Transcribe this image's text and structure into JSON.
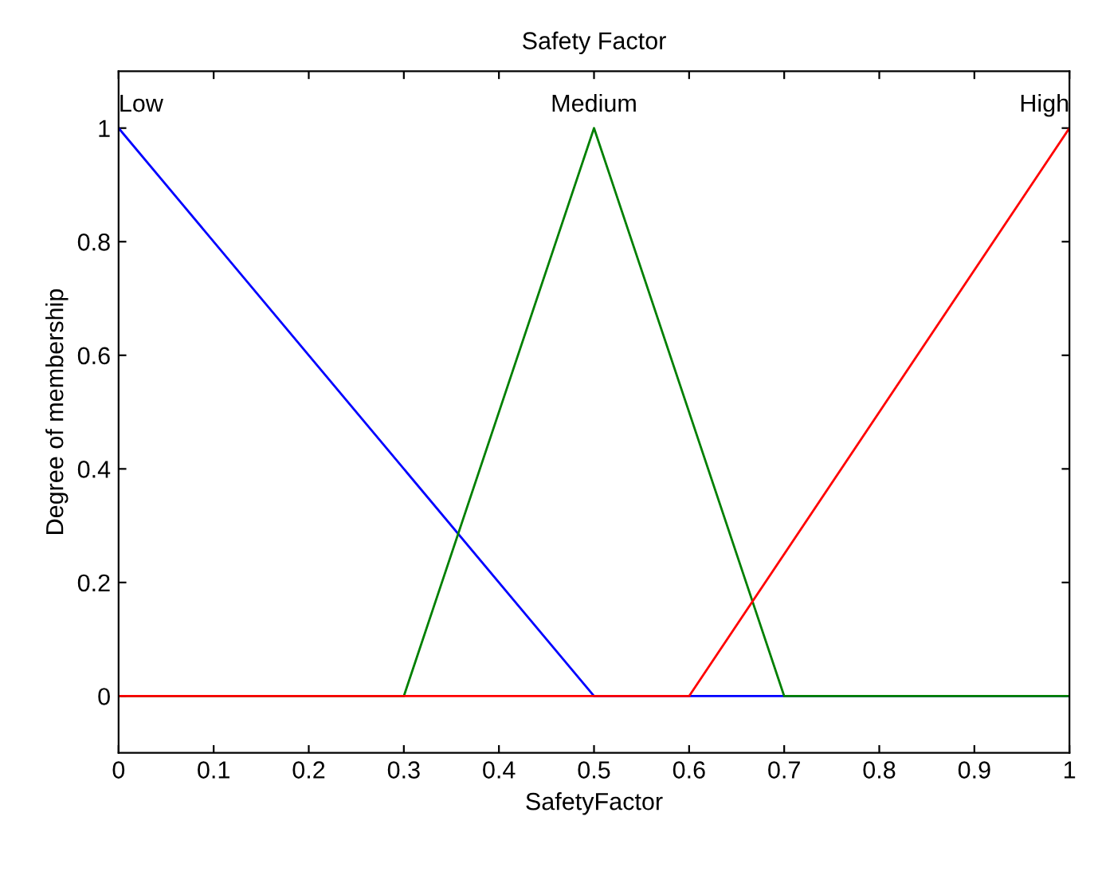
{
  "chart_data": {
    "type": "line",
    "title": "Safety Factor",
    "xlabel": "SafetyFactor",
    "ylabel": "Degree of membership",
    "series": [
      {
        "name": "Low",
        "color": "#0000ff",
        "x": [
          0,
          0.5,
          1
        ],
        "values": [
          1,
          0,
          0
        ]
      },
      {
        "name": "Medium",
        "color": "#008000",
        "x": [
          0,
          0.3,
          0.5,
          0.7,
          1
        ],
        "values": [
          0,
          0,
          1,
          0,
          0
        ]
      },
      {
        "name": "High",
        "color": "#ff0000",
        "x": [
          0,
          0.6,
          1
        ],
        "values": [
          0,
          0,
          1
        ]
      }
    ],
    "xlim": [
      0,
      1
    ],
    "ylim": [
      -0.1,
      1.1
    ],
    "xticks": [
      0,
      0.1,
      0.2,
      0.3,
      0.4,
      0.5,
      0.6,
      0.7,
      0.8,
      0.9,
      1
    ],
    "yticks": [
      0,
      0.2,
      0.4,
      0.6,
      0.8,
      1
    ],
    "grid": false,
    "legend": false,
    "marker": "none",
    "line_style": "solid"
  }
}
